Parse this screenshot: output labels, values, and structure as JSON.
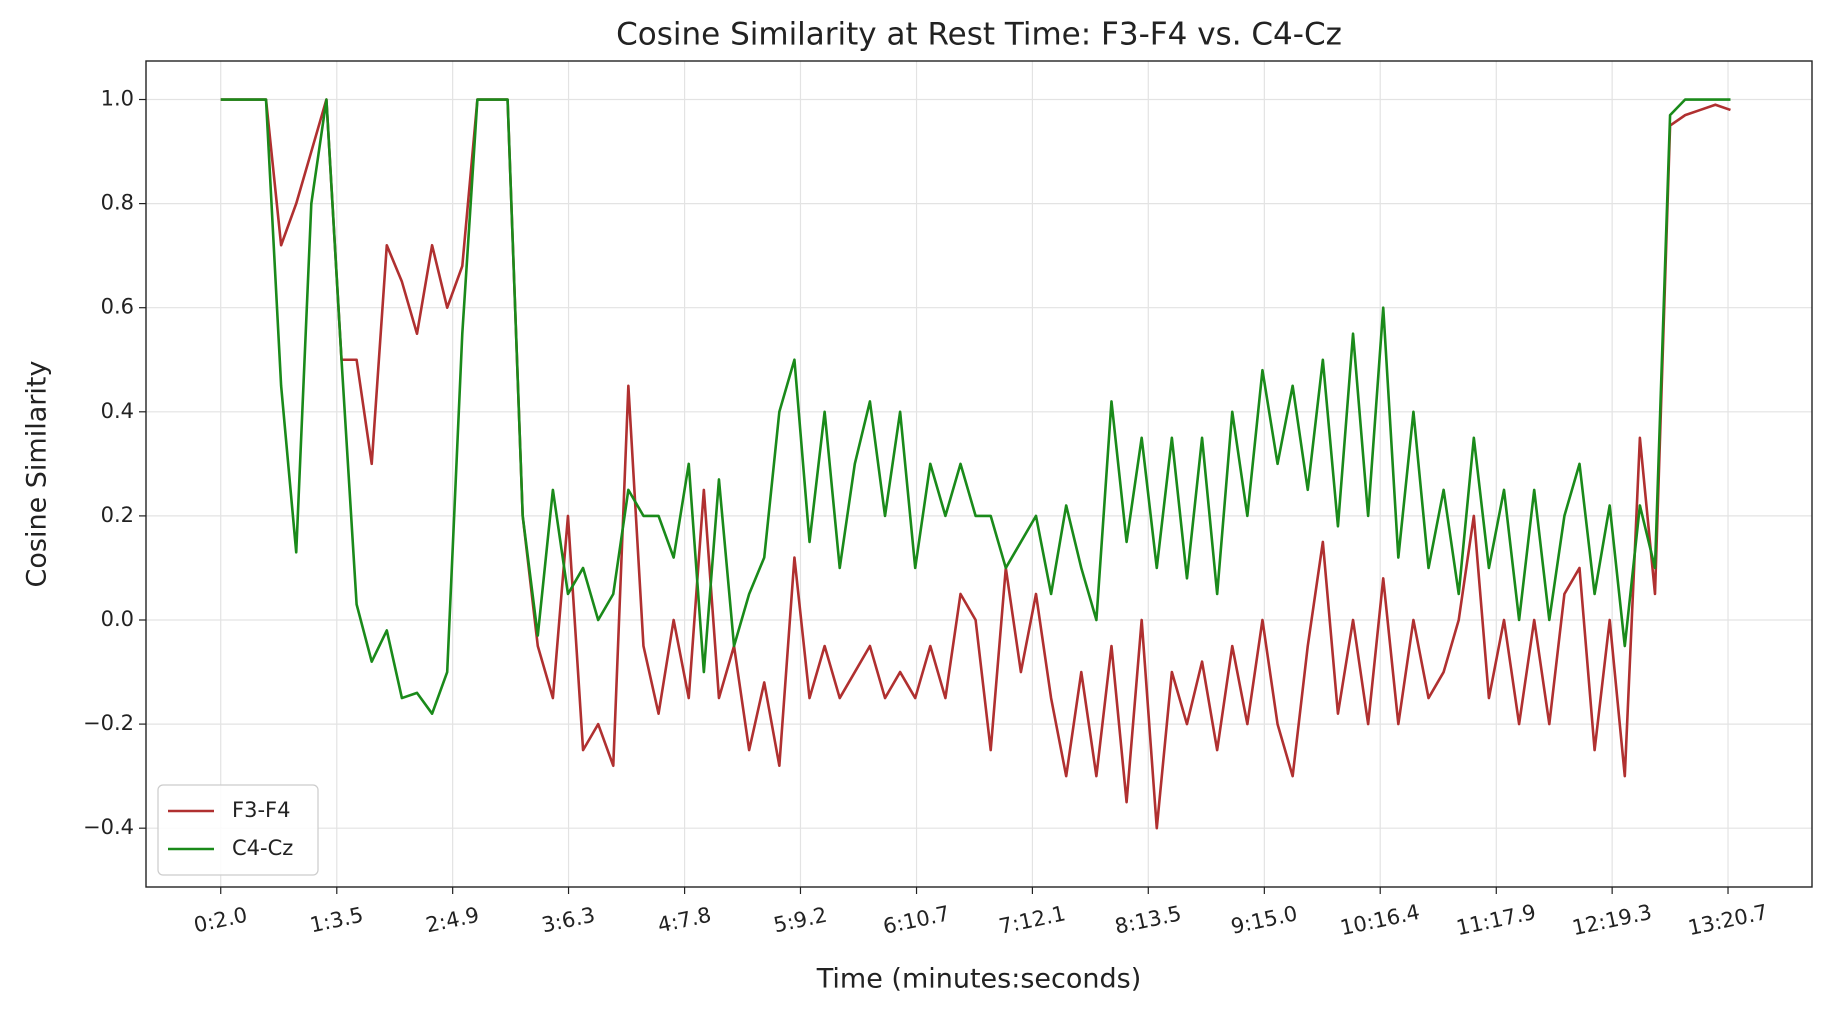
{
  "chart_data": {
    "type": "line",
    "title": "Cosine Similarity at Rest Time: F3-F4 vs. C4-Cz",
    "xlabel": "Time (minutes:seconds)",
    "ylabel": "Cosine Similarity",
    "x": [
      2,
      10,
      18,
      26,
      34,
      42,
      50,
      58,
      66,
      74,
      82,
      90,
      98,
      106,
      114,
      122,
      130,
      138,
      146,
      154,
      162,
      170,
      178,
      186,
      194,
      202,
      210,
      218,
      226,
      234,
      242,
      250,
      258,
      266,
      274,
      282,
      290,
      298,
      306,
      314,
      322,
      330,
      338,
      346,
      354,
      362,
      370,
      378,
      386,
      394,
      402,
      410,
      418,
      426,
      434,
      442,
      450,
      458,
      466,
      474,
      482,
      490,
      498,
      506,
      514,
      522,
      530,
      538,
      546,
      554,
      562,
      570,
      578,
      586,
      594,
      602,
      610,
      618,
      626,
      634,
      642,
      650,
      658,
      666,
      674,
      682,
      690,
      698,
      706,
      714,
      722,
      730,
      738,
      746,
      754,
      762,
      770,
      778,
      786,
      794,
      802
    ],
    "series": [
      {
        "name": "F3-F4",
        "color": "#b03030",
        "values": [
          1.0,
          1.0,
          1.0,
          1.0,
          0.72,
          0.8,
          0.9,
          1.0,
          0.5,
          0.5,
          0.3,
          0.72,
          0.65,
          0.55,
          0.72,
          0.6,
          0.68,
          1.0,
          1.0,
          1.0,
          0.2,
          -0.05,
          -0.15,
          0.2,
          -0.25,
          -0.2,
          -0.28,
          0.45,
          -0.05,
          -0.18,
          0.0,
          -0.15,
          0.25,
          -0.15,
          -0.05,
          -0.25,
          -0.12,
          -0.28,
          0.12,
          -0.15,
          -0.05,
          -0.15,
          -0.1,
          -0.05,
          -0.15,
          -0.1,
          -0.15,
          -0.05,
          -0.15,
          0.05,
          0.0,
          -0.25,
          0.1,
          -0.1,
          0.05,
          -0.15,
          -0.3,
          -0.1,
          -0.3,
          -0.05,
          -0.35,
          0.0,
          -0.4,
          -0.1,
          -0.2,
          -0.08,
          -0.25,
          -0.05,
          -0.2,
          0.0,
          -0.2,
          -0.3,
          -0.05,
          0.15,
          -0.18,
          0.0,
          -0.2,
          0.08,
          -0.2,
          0.0,
          -0.15,
          -0.1,
          0.0,
          0.2,
          -0.15,
          0.0,
          -0.2,
          0.0,
          -0.2,
          0.05,
          0.1,
          -0.25,
          0.0,
          -0.3,
          0.35,
          0.05,
          0.95,
          0.97,
          0.98,
          0.99,
          0.98
        ]
      },
      {
        "name": "C4-Cz",
        "color": "#1a8a1a",
        "values": [
          1.0,
          1.0,
          1.0,
          1.0,
          0.45,
          0.13,
          0.8,
          1.0,
          0.5,
          0.03,
          -0.08,
          -0.02,
          -0.15,
          -0.14,
          -0.18,
          -0.1,
          0.55,
          1.0,
          1.0,
          1.0,
          0.2,
          -0.03,
          0.25,
          0.05,
          0.1,
          0.0,
          0.05,
          0.25,
          0.2,
          0.2,
          0.12,
          0.3,
          -0.1,
          0.27,
          -0.05,
          0.05,
          0.12,
          0.4,
          0.5,
          0.15,
          0.4,
          0.1,
          0.3,
          0.42,
          0.2,
          0.4,
          0.1,
          0.3,
          0.2,
          0.3,
          0.2,
          0.2,
          0.1,
          0.15,
          0.2,
          0.05,
          0.22,
          0.1,
          0.0,
          0.42,
          0.15,
          0.35,
          0.1,
          0.35,
          0.08,
          0.35,
          0.05,
          0.4,
          0.2,
          0.48,
          0.3,
          0.45,
          0.25,
          0.5,
          0.18,
          0.55,
          0.2,
          0.6,
          0.12,
          0.4,
          0.1,
          0.25,
          0.05,
          0.35,
          0.1,
          0.25,
          0.0,
          0.25,
          0.0,
          0.2,
          0.3,
          0.05,
          0.22,
          -0.05,
          0.22,
          0.1,
          0.97,
          1.0,
          1.0,
          1.0,
          1.0
        ]
      }
    ],
    "xlim": [
      -37.6,
      845.2
    ],
    "ylim": [
      -0.513,
      1.074
    ],
    "xticks": [
      {
        "value": 2.0,
        "label": "0:2.0"
      },
      {
        "value": 63.5,
        "label": "1:3.5"
      },
      {
        "value": 124.9,
        "label": "2:4.9"
      },
      {
        "value": 186.3,
        "label": "3:6.3"
      },
      {
        "value": 247.8,
        "label": "4:7.8"
      },
      {
        "value": 309.2,
        "label": "5:9.2"
      },
      {
        "value": 370.7,
        "label": "6:10.7"
      },
      {
        "value": 432.1,
        "label": "7:12.1"
      },
      {
        "value": 493.5,
        "label": "8:13.5"
      },
      {
        "value": 555.0,
        "label": "9:15.0"
      },
      {
        "value": 616.4,
        "label": "10:16.4"
      },
      {
        "value": 677.9,
        "label": "11:17.9"
      },
      {
        "value": 739.3,
        "label": "12:19.3"
      },
      {
        "value": 800.7,
        "label": "13:20.7"
      }
    ],
    "yticks": [
      {
        "value": -0.4,
        "label": "−0.4"
      },
      {
        "value": -0.2,
        "label": "−0.2"
      },
      {
        "value": 0,
        "label": "0.0"
      },
      0.2,
      0.4,
      0.6,
      0.8,
      {
        "value": 1,
        "label": "1.0"
      }
    ],
    "grid": true,
    "legend": "lower left"
  }
}
